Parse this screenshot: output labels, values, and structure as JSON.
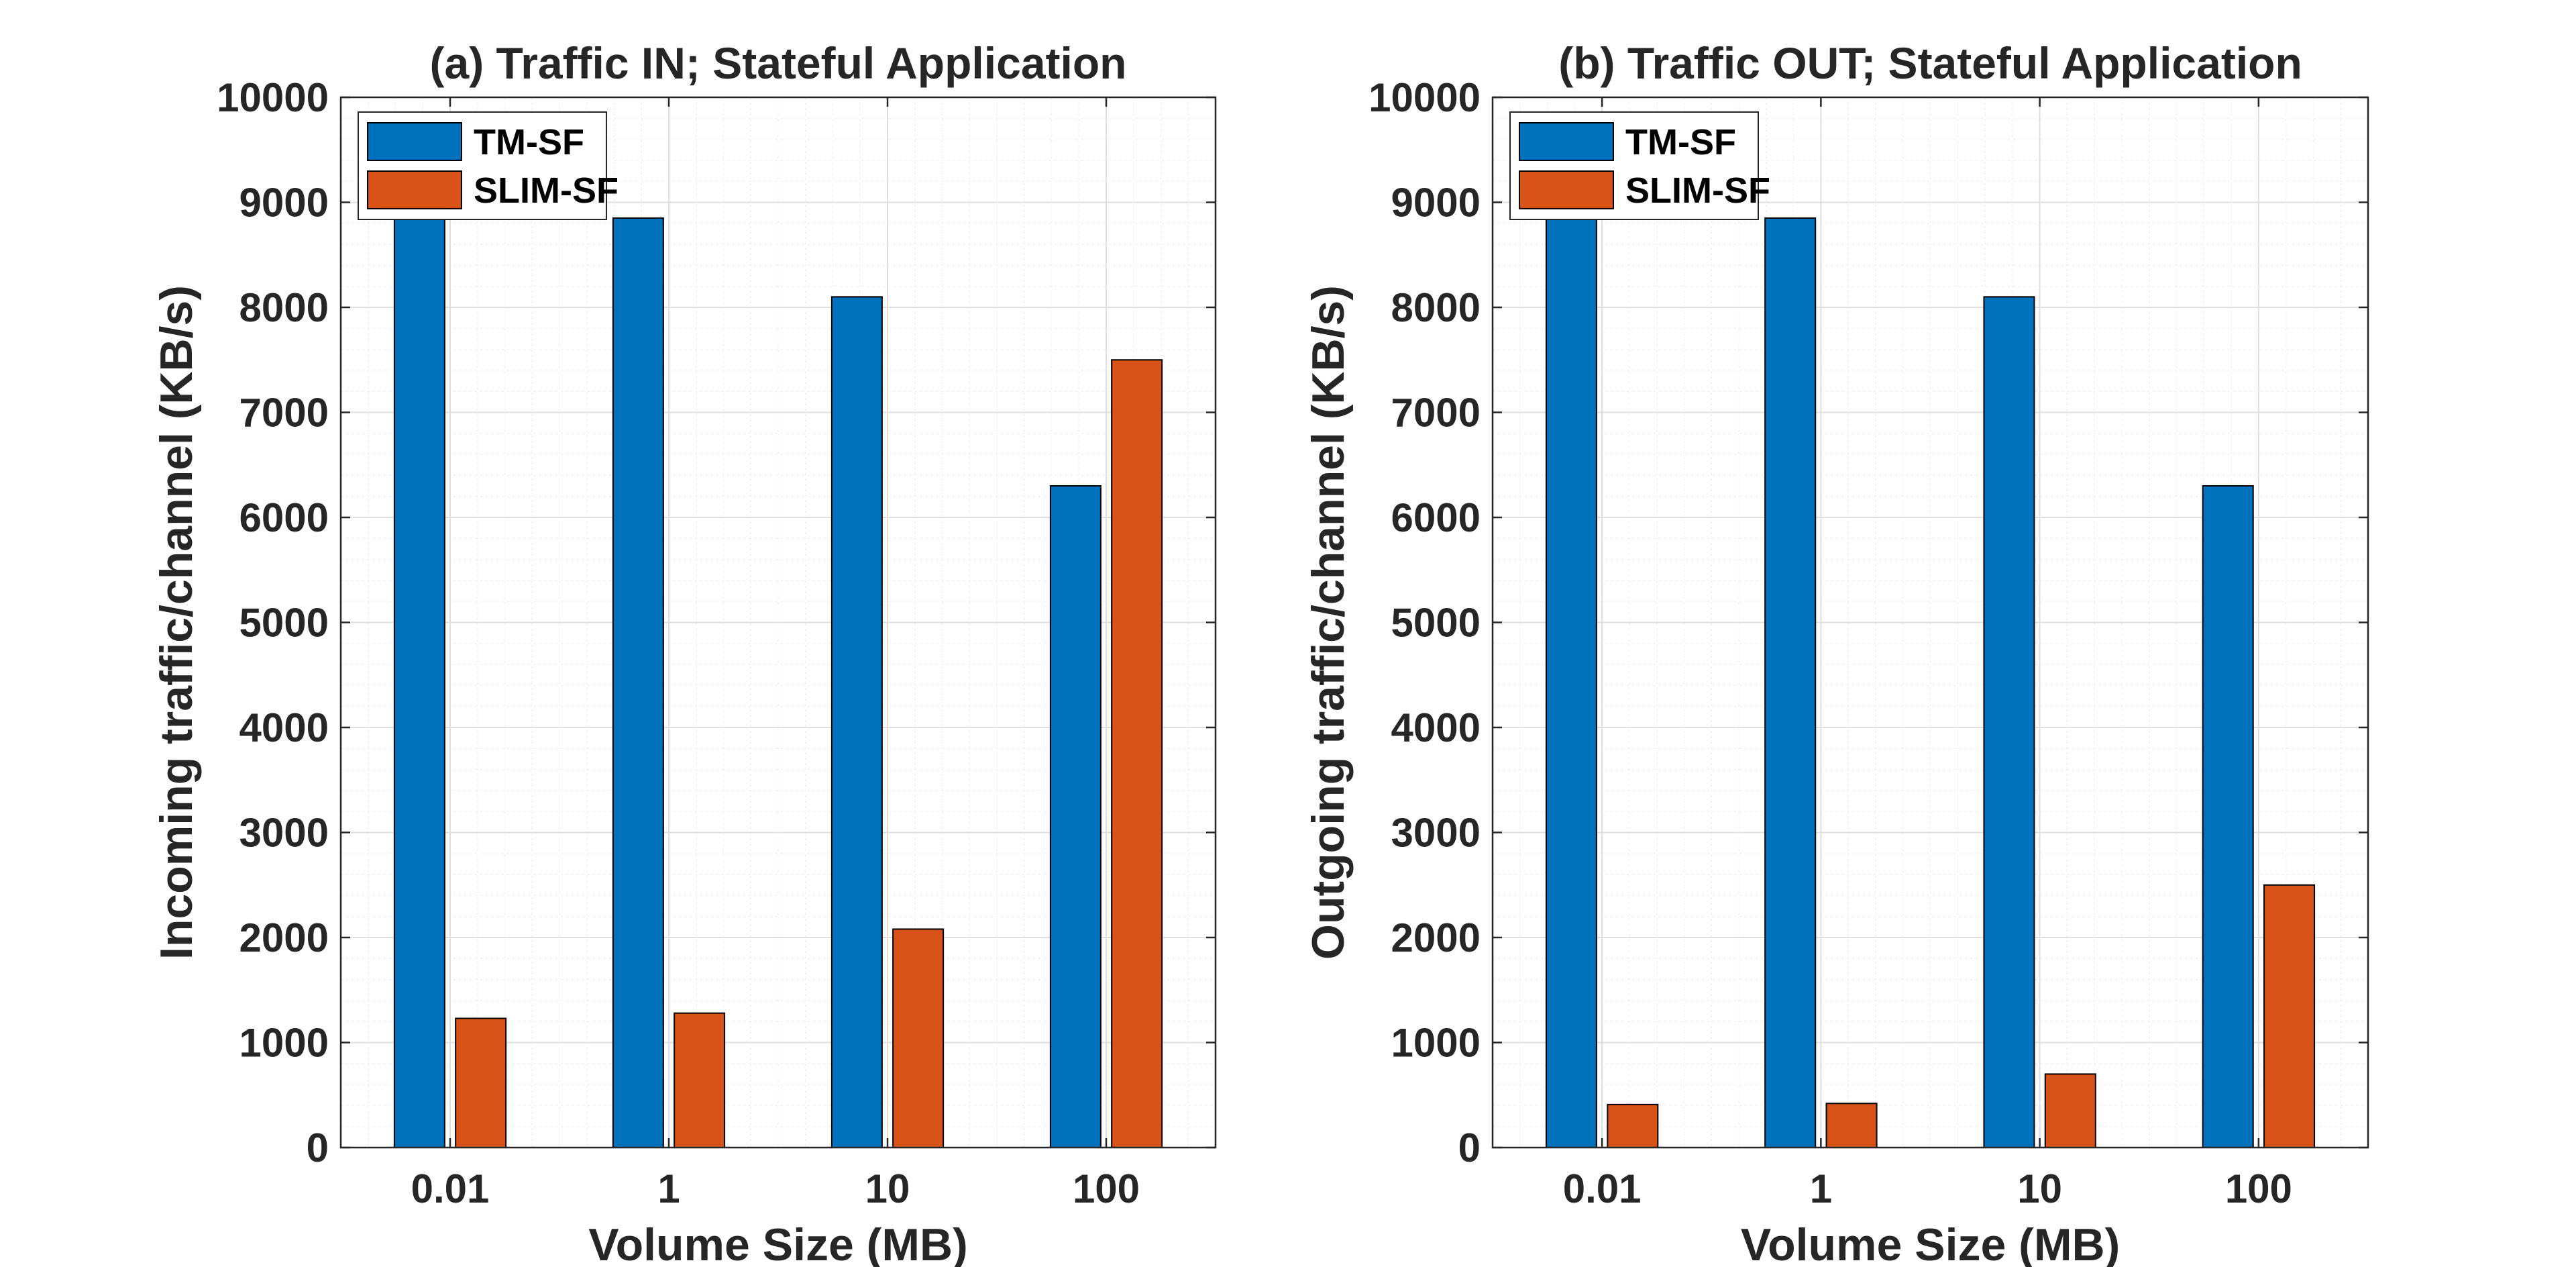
{
  "colors": {
    "series1": "#0072BD",
    "series2": "#D95319",
    "axis": "#262626",
    "grid": "#dfdfdf",
    "minorGrid": "#efefef"
  },
  "chart_data": [
    {
      "type": "bar",
      "title": "(a) Traffic IN; Stateful Application",
      "xlabel": "Volume Size (MB)",
      "ylabel": "Incoming traffic/channel (KB/s)",
      "categories": [
        "0.01",
        "1",
        "10",
        "100"
      ],
      "series": [
        {
          "name": "TM-SF",
          "values": [
            8850,
            8850,
            8100,
            6300
          ]
        },
        {
          "name": "SLIM-SF",
          "values": [
            1230,
            1280,
            2080,
            7500
          ]
        }
      ],
      "ylim": [
        0,
        10000
      ],
      "yticks": [
        0,
        1000,
        2000,
        3000,
        4000,
        5000,
        6000,
        7000,
        8000,
        9000,
        10000
      ],
      "grid": true,
      "minor_grid": true,
      "legend_position": "top-left"
    },
    {
      "type": "bar",
      "title": "(b) Traffic OUT; Stateful Application",
      "xlabel": "Volume Size (MB)",
      "ylabel": "Outgoing traffic/channel (KB/s)",
      "categories": [
        "0.01",
        "1",
        "10",
        "100"
      ],
      "series": [
        {
          "name": "TM-SF",
          "values": [
            8850,
            8850,
            8100,
            6300
          ]
        },
        {
          "name": "SLIM-SF",
          "values": [
            410,
            420,
            700,
            2500
          ]
        }
      ],
      "ylim": [
        0,
        10000
      ],
      "yticks": [
        0,
        1000,
        2000,
        3000,
        4000,
        5000,
        6000,
        7000,
        8000,
        9000,
        10000
      ],
      "grid": true,
      "minor_grid": true,
      "legend_position": "top-left"
    }
  ]
}
